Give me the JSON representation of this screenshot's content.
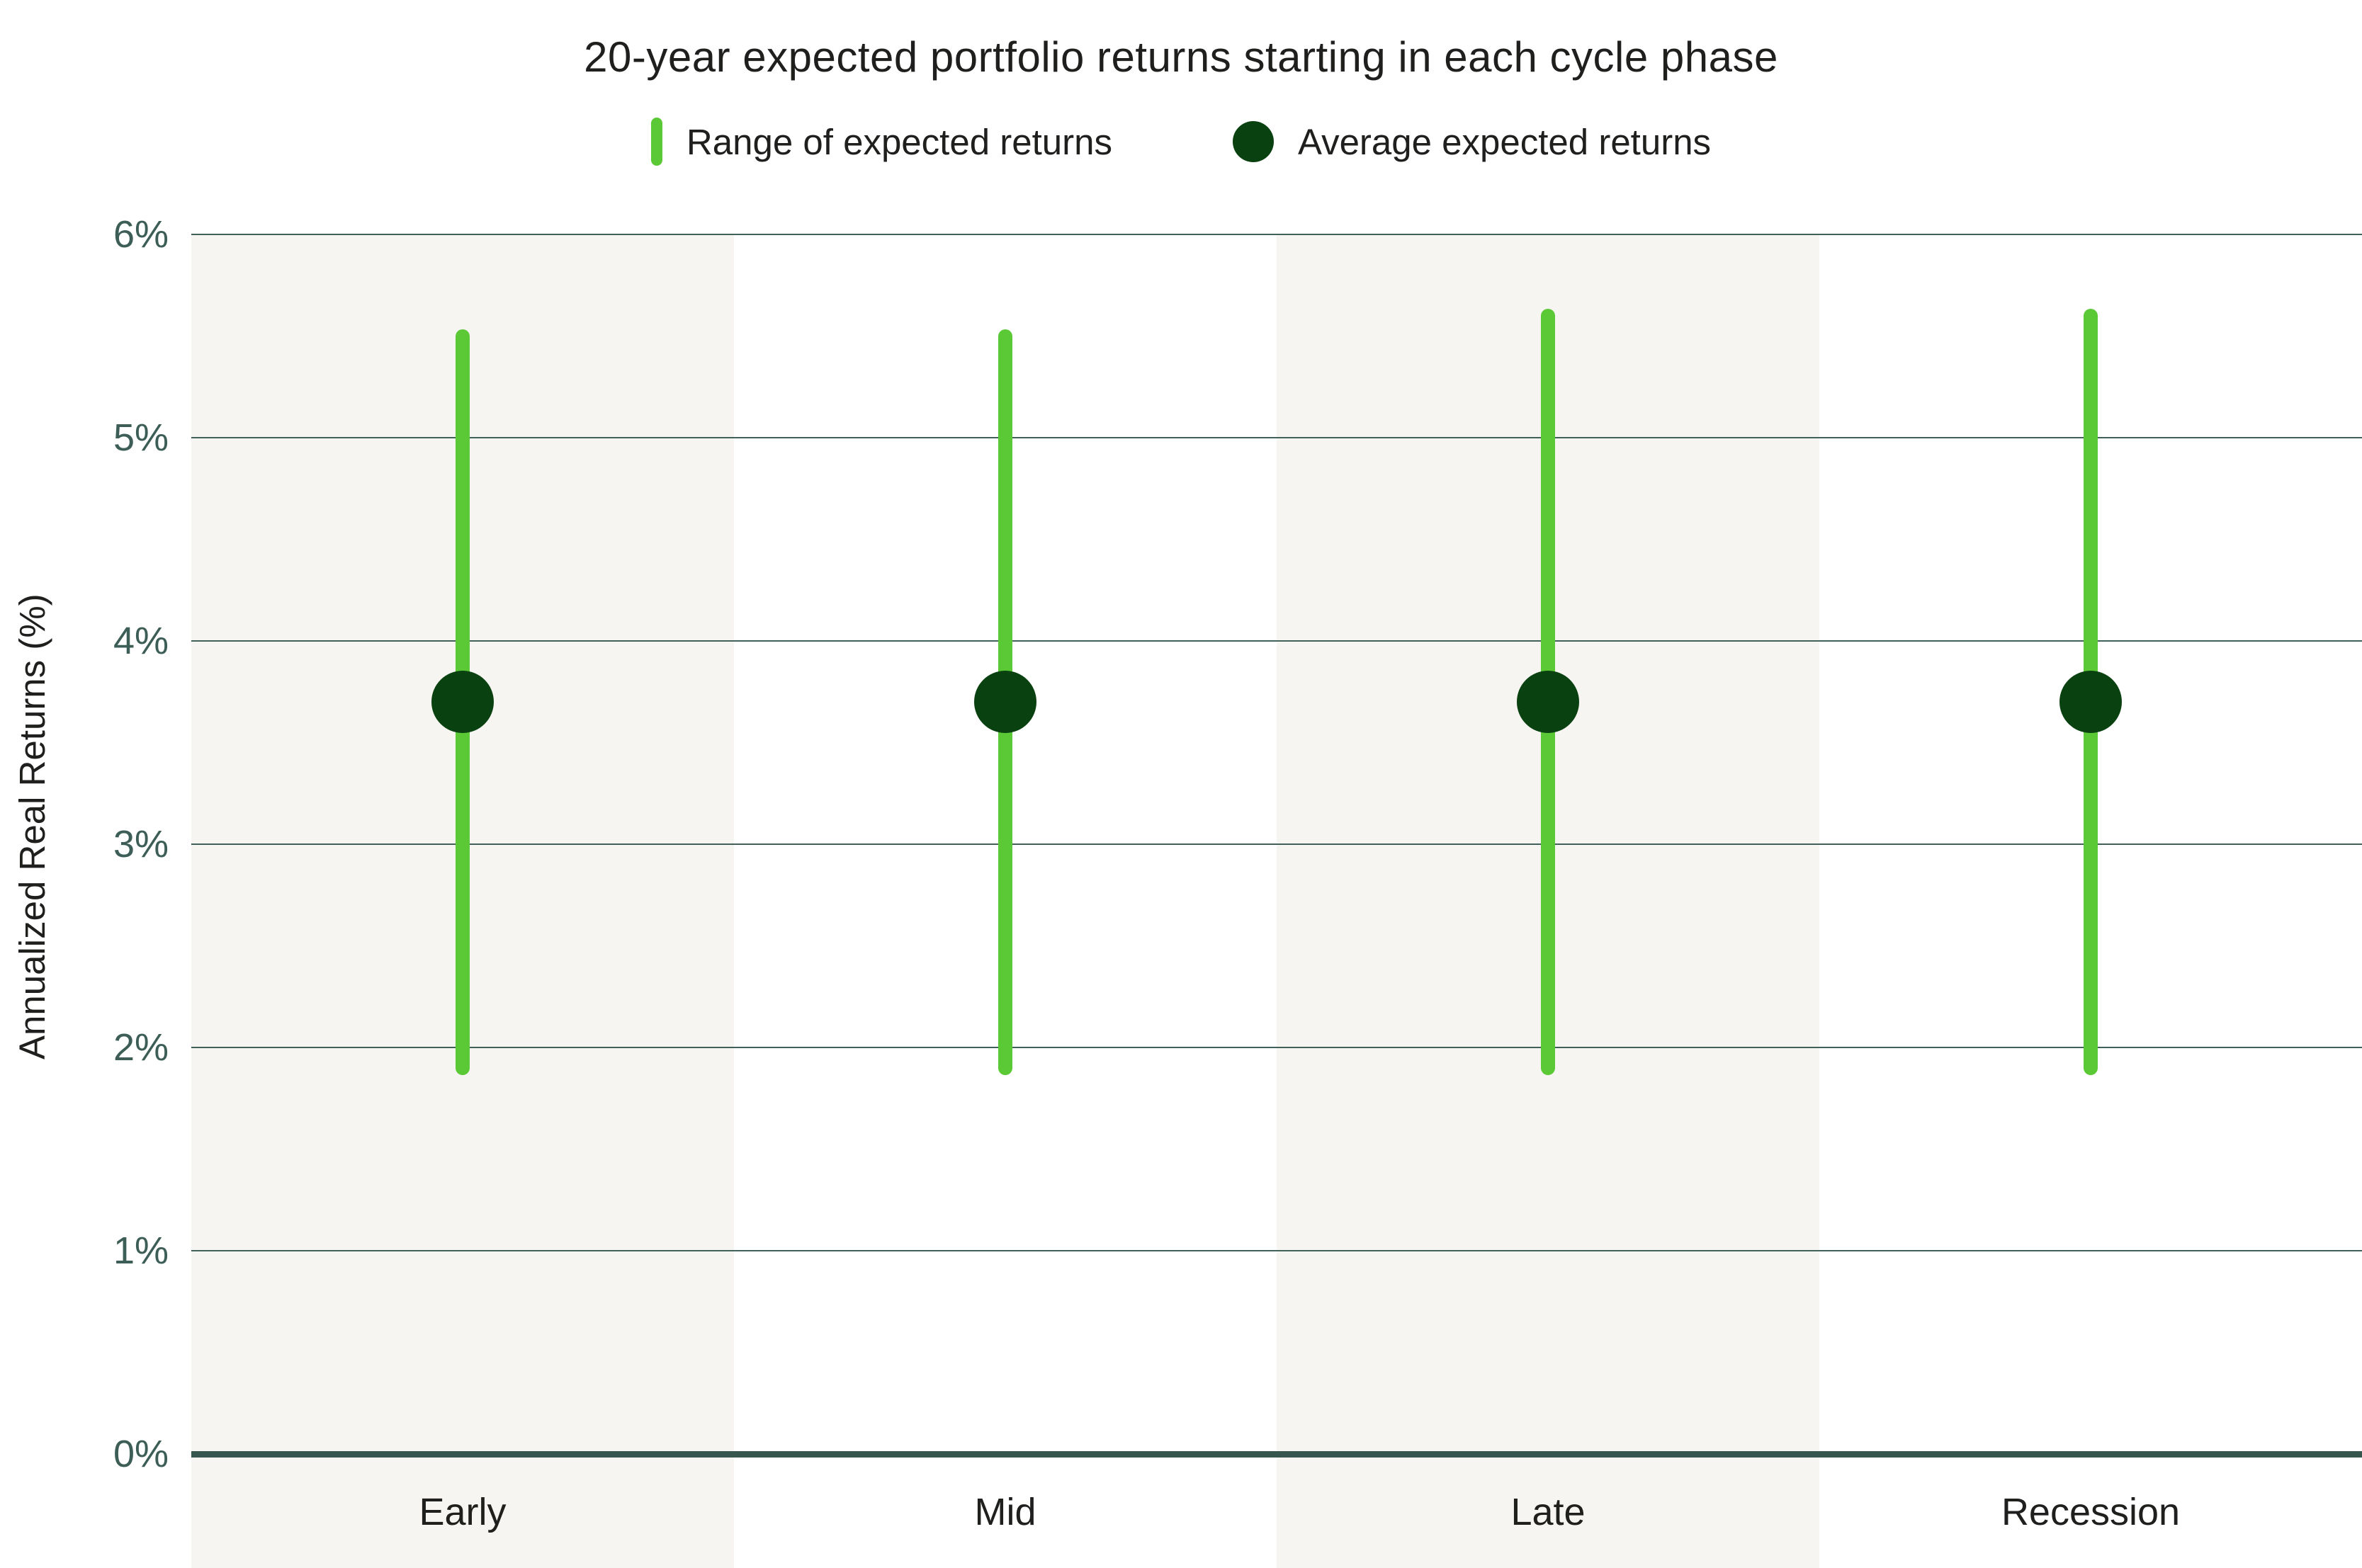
{
  "chart_data": {
    "type": "bar",
    "subtype": "range-bar-with-average-dot",
    "title": "20-year expected portfolio returns starting in each cycle phase",
    "ylabel": "Annualized Real Returns (%)",
    "xlabel": "",
    "categories": [
      "Early",
      "Mid",
      "Late",
      "Recession"
    ],
    "series": [
      {
        "name": "Range of expected returns",
        "type": "range",
        "low": [
          1.9,
          1.9,
          1.9,
          1.9
        ],
        "high": [
          5.5,
          5.5,
          5.6,
          5.6
        ]
      },
      {
        "name": "Average expected returns",
        "type": "dot",
        "values": [
          3.7,
          3.7,
          3.7,
          3.7
        ]
      }
    ],
    "ylim": [
      0,
      6
    ],
    "yticks": [
      {
        "value": 6,
        "label": "6%"
      },
      {
        "value": 5,
        "label": "5%"
      },
      {
        "value": 4,
        "label": "4%"
      },
      {
        "value": 3,
        "label": "3%"
      },
      {
        "value": 2,
        "label": "2%"
      },
      {
        "value": 1,
        "label": "1%"
      },
      {
        "value": 0,
        "label": "0%"
      }
    ],
    "grid": true,
    "legend_position": "top",
    "column_backgrounds": [
      "#f7f5f2",
      "#ffffff",
      "#f7f5f2",
      "#ffffff"
    ]
  },
  "colors": {
    "range_bar": "#5bc936",
    "average_dot": "#0a4110",
    "gridline": "#40615a",
    "axis_line": "#37564e",
    "tick_label": "#3d5e56",
    "text": "#1f1f1d",
    "background": "#ffffff"
  }
}
